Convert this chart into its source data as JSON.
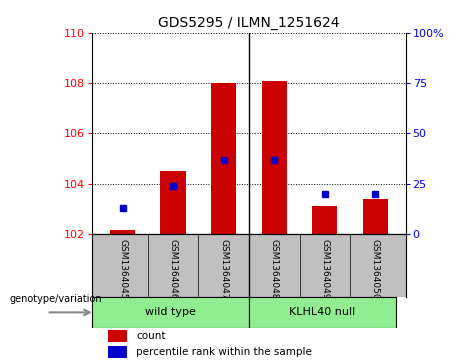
{
  "title": "GDS5295 / ILMN_1251624",
  "samples": [
    "GSM1364045",
    "GSM1364046",
    "GSM1364047",
    "GSM1364048",
    "GSM1364049",
    "GSM1364050"
  ],
  "group_labels": [
    "wild type",
    "KLHL40 null"
  ],
  "bar_bottom": 102,
  "counts": [
    102.15,
    104.5,
    108.0,
    108.1,
    103.1,
    103.4
  ],
  "percentiles": [
    13,
    24,
    37,
    37,
    20,
    20
  ],
  "ylim_left": [
    102,
    110
  ],
  "ylim_right": [
    0,
    100
  ],
  "yticks_left": [
    102,
    104,
    106,
    108,
    110
  ],
  "yticks_right": [
    0,
    25,
    50,
    75,
    100
  ],
  "ytick_labels_right": [
    "0",
    "25",
    "50",
    "75",
    "100%"
  ],
  "bar_color": "#CC0000",
  "dot_color": "#0000CC",
  "bar_width": 0.5,
  "bg_color": "#FFFFFF",
  "tick_label_bg": "#C0C0C0",
  "green_color": "#90EE90",
  "genotype_label": "genotype/variation",
  "legend_count": "count",
  "legend_percentile": "percentile rank within the sample",
  "grid_ticks": [
    104,
    106,
    108,
    110
  ]
}
